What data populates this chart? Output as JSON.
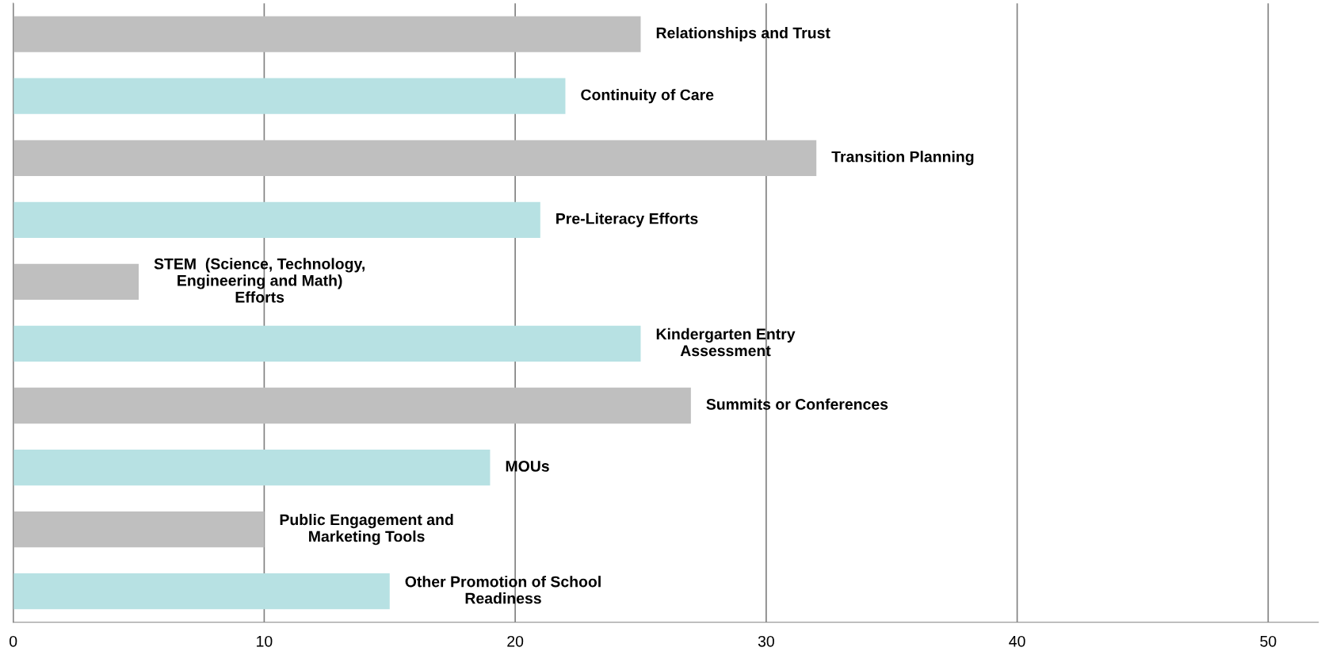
{
  "chart_data": {
    "type": "bar",
    "orientation": "horizontal",
    "categories": [
      "Relationships and Trust",
      "Continuity of Care",
      "Transition Planning",
      "Pre-Literacy Efforts",
      "STEM  (Science, Technology,\nEngineering and Math)\nEfforts",
      "Kindergarten Entry\nAssessment",
      "Summits or Conferences",
      "MOUs",
      "Public Engagement and\nMarketing Tools",
      "Other Promotion of School\nReadiness"
    ],
    "values": [
      25,
      22,
      32,
      21,
      5,
      25,
      27,
      19,
      10,
      15
    ],
    "colors": [
      "#bfbfbf",
      "#b7e1e3",
      "#bfbfbf",
      "#b7e1e3",
      "#bfbfbf",
      "#b7e1e3",
      "#bfbfbf",
      "#b7e1e3",
      "#bfbfbf",
      "#b7e1e3"
    ],
    "xlim": [
      0,
      52
    ],
    "xticks": [
      0,
      10,
      20,
      30,
      40,
      50
    ],
    "grid": "x",
    "tick_labels": "x"
  }
}
